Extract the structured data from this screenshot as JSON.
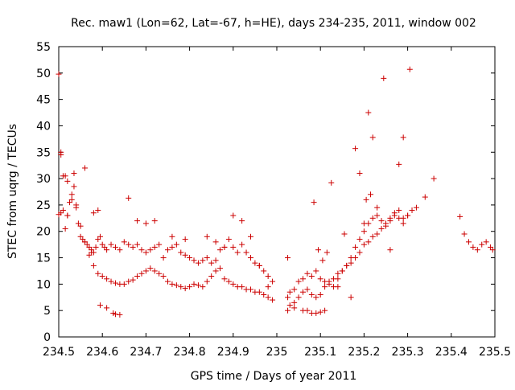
{
  "chart_data": {
    "type": "scatter",
    "title": "Rec. maw1 (Lon=62, Lat=-67, h=HE), days 234-235, 2011, window 002",
    "xlabel": "GPS time / Days of year 2011",
    "ylabel": "STEC from uqrg / TECUs",
    "xlim": [
      234.5,
      235.5
    ],
    "ylim": [
      0,
      55
    ],
    "xticks": [
      234.5,
      234.6,
      234.7,
      234.8,
      234.9,
      235,
      235.1,
      235.2,
      235.3,
      235.4,
      235.5
    ],
    "xtick_labels": [
      "234.5",
      "234.6",
      "234.7",
      "234.8",
      "234.9",
      "235",
      "235.1",
      "235.2",
      "235.3",
      "235.4",
      "235.5"
    ],
    "yticks": [
      0,
      5,
      10,
      15,
      20,
      25,
      30,
      35,
      40,
      45,
      50,
      55
    ],
    "ytick_labels": [
      "0",
      "5",
      "10",
      "15",
      "20",
      "25",
      "30",
      "35",
      "40",
      "45",
      "50",
      "55"
    ],
    "grid": false,
    "marker": "+",
    "color": "#cc0000",
    "series": [
      {
        "x": [
          234.5,
          234.505,
          234.51,
          234.515,
          234.52,
          234.525,
          234.53,
          234.535,
          234.54,
          234.545,
          234.55,
          234.555,
          234.56,
          234.565,
          234.57,
          234.575,
          234.58,
          234.585,
          234.59,
          234.595,
          234.6,
          234.605,
          234.61,
          234.62,
          234.63,
          234.64,
          234.65,
          234.66,
          234.67,
          234.68,
          234.69,
          234.7,
          234.71,
          234.72,
          234.73,
          234.74,
          234.75,
          234.76,
          234.77,
          234.78,
          234.79,
          234.8,
          234.81,
          234.82,
          234.83,
          234.84,
          234.85,
          234.86,
          234.87,
          234.88,
          234.89,
          234.9,
          234.91,
          234.92,
          234.93,
          234.94,
          234.95,
          234.96,
          234.97,
          234.98,
          234.99,
          235.025,
          235.03,
          235.04,
          235.05,
          235.06,
          235.07,
          235.08,
          235.09,
          235.1,
          235.11,
          235.12,
          235.13,
          235.14,
          235.15,
          235.16,
          235.17,
          235.18,
          235.19,
          235.2,
          235.21,
          235.22,
          235.23,
          235.24,
          235.25,
          235.26,
          235.27,
          235.28,
          235.29,
          235.3,
          235.31,
          235.32,
          235.34,
          235.36,
          235.42,
          235.43,
          235.44,
          235.45,
          235.46,
          235.47,
          235.48,
          235.49,
          235.495
        ],
        "y": [
          23.2,
          23.5,
          24.0,
          20.5,
          23.0,
          25.5,
          26.0,
          28.5,
          25.0,
          21.5,
          19.0,
          18.5,
          18.0,
          17.5,
          17.0,
          16.5,
          16.0,
          17.0,
          18.5,
          19.0,
          17.5,
          17.0,
          16.5,
          17.5,
          17.0,
          16.5,
          18.0,
          17.5,
          17.0,
          17.5,
          16.5,
          16.0,
          16.5,
          17.0,
          17.5,
          15.0,
          16.5,
          17.0,
          17.5,
          16.0,
          15.5,
          15.0,
          14.5,
          14.0,
          14.5,
          15.0,
          14.0,
          14.5,
          16.5,
          17.0,
          18.5,
          17.0,
          16.0,
          17.5,
          16.0,
          15.0,
          14.0,
          13.5,
          12.5,
          11.5,
          10.5,
          7.5,
          8.5,
          9.0,
          10.5,
          11.0,
          12.0,
          11.5,
          12.5,
          11.0,
          10.5,
          10.0,
          9.5,
          11.0,
          12.5,
          13.5,
          15.0,
          17.0,
          18.5,
          20.0,
          21.5,
          22.5,
          23.0,
          22.0,
          21.5,
          22.5,
          23.5,
          24.0,
          22.5,
          23.0,
          24.0,
          24.5,
          26.5,
          30.0,
          22.8,
          19.5,
          18.0,
          17.0,
          16.5,
          17.5,
          18.0,
          17.0,
          16.5
        ]
      },
      {
        "x": [
          234.5,
          234.505,
          234.51,
          234.52,
          234.53,
          234.54,
          234.55,
          234.56,
          234.57,
          234.58,
          234.59,
          234.6,
          234.61,
          234.62,
          234.63,
          234.64,
          234.65,
          234.66,
          234.67,
          234.68,
          234.69,
          234.7,
          234.71,
          234.72,
          234.73,
          234.74,
          234.75,
          234.76,
          234.77,
          234.78,
          234.79,
          234.8,
          234.81,
          234.82,
          234.83,
          234.84,
          234.85,
          234.86,
          234.87,
          234.88,
          234.89,
          234.9,
          234.91,
          234.92,
          234.93,
          234.94,
          234.95,
          234.96,
          234.97,
          234.98,
          234.99,
          235.025,
          235.03,
          235.04,
          235.05,
          235.06,
          235.07,
          235.08,
          235.09,
          235.1,
          235.11,
          235.12,
          235.13,
          235.14,
          235.15,
          235.16,
          235.17,
          235.18,
          235.19,
          235.2,
          235.21,
          235.22,
          235.23,
          235.24,
          235.25,
          235.26,
          235.27,
          235.28,
          235.29,
          235.3
        ],
        "y": [
          49.8,
          34.5,
          30.5,
          29.5,
          27.0,
          24.5,
          21.0,
          18.0,
          15.5,
          13.5,
          12.0,
          11.5,
          11.0,
          10.5,
          10.2,
          10.0,
          10.0,
          10.5,
          10.8,
          11.5,
          12.0,
          12.5,
          13.0,
          12.5,
          12.0,
          11.5,
          10.5,
          10.0,
          9.8,
          9.5,
          9.2,
          9.5,
          10.0,
          9.8,
          9.5,
          10.5,
          11.5,
          12.5,
          13.0,
          11.0,
          10.5,
          10.0,
          9.5,
          9.5,
          9.0,
          9.0,
          8.5,
          8.5,
          8.0,
          7.5,
          7.0,
          5.0,
          6.0,
          6.5,
          7.5,
          8.5,
          9.0,
          8.0,
          7.5,
          8.0,
          9.5,
          10.5,
          11.0,
          12.0,
          12.5,
          13.5,
          14.0,
          15.0,
          16.0,
          17.5,
          18.0,
          19.0,
          19.5,
          20.5,
          21.0,
          22.0,
          23.0,
          22.5,
          21.5,
          23.0
        ]
      },
      {
        "x": [
          234.505,
          234.515,
          234.52,
          234.535,
          234.56,
          234.575,
          234.58,
          234.59,
          234.595,
          234.61,
          234.625,
          234.63,
          234.64,
          234.66,
          234.68,
          234.7,
          234.72,
          234.76,
          234.79,
          234.84,
          234.86,
          234.88,
          234.9,
          234.92,
          234.94,
          234.96,
          234.98,
          235.025,
          235.04,
          235.06,
          235.07,
          235.08,
          235.085,
          235.09,
          235.095,
          235.1,
          235.105,
          235.11,
          235.115,
          235.125,
          235.14,
          235.155,
          235.17,
          235.18,
          235.19,
          235.2,
          235.205,
          235.21,
          235.215,
          235.22,
          235.23,
          235.245,
          235.26,
          235.28,
          235.29,
          235.305
        ],
        "y": [
          35.0,
          30.5,
          23.0,
          31.0,
          32.0,
          16.0,
          23.5,
          24.0,
          6.0,
          5.5,
          4.5,
          4.3,
          4.2,
          26.3,
          22.0,
          21.5,
          22.0,
          19.0,
          18.5,
          19.0,
          18.0,
          17.0,
          23.0,
          22.0,
          19.0,
          13.5,
          9.5,
          15.0,
          5.5,
          5.0,
          5.0,
          4.5,
          25.5,
          4.5,
          16.5,
          4.7,
          14.5,
          5.0,
          16.0,
          29.2,
          9.5,
          19.5,
          7.5,
          35.7,
          31.0,
          21.5,
          26.0,
          42.5,
          27.0,
          37.8,
          24.5,
          49.0,
          16.5,
          32.7,
          37.8,
          50.7
        ]
      }
    ]
  }
}
